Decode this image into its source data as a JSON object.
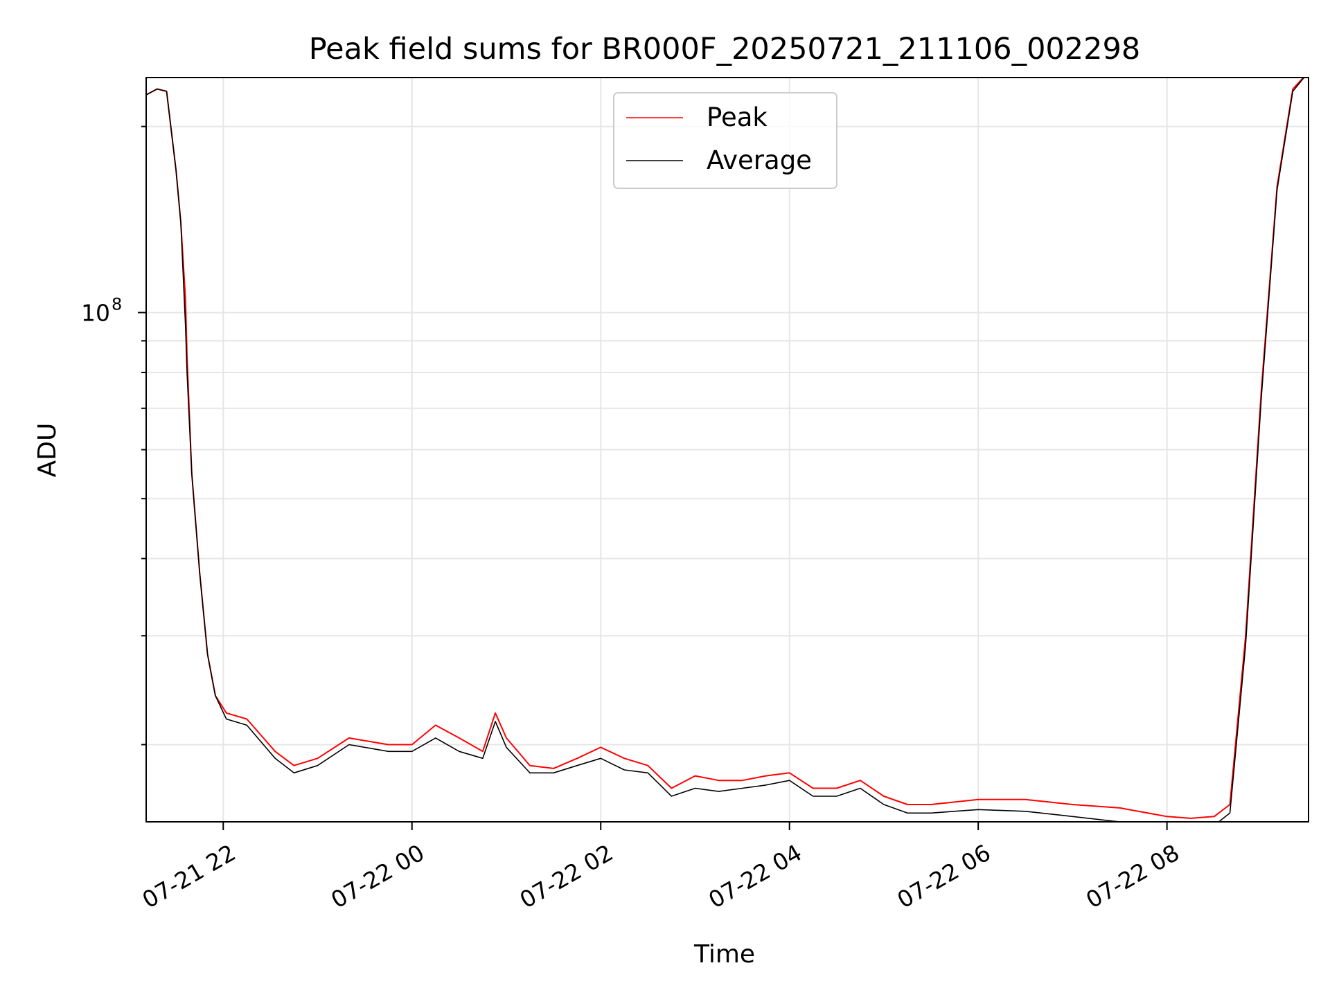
{
  "chart_data": {
    "type": "line",
    "title": "Peak field sums for BR000F_20250721_211106_002298",
    "xlabel": "Time",
    "ylabel": "ADU",
    "yscale": "log",
    "xlim": [
      "2025-07-21 21:11",
      "2025-07-22 09:30"
    ],
    "ylim": [
      15000000,
      240000000
    ],
    "grid": true,
    "legend_position": "top-center",
    "x_ticks": [
      {
        "time": "2025-07-21 22:00",
        "label": "07-21 22"
      },
      {
        "time": "2025-07-22 00:00",
        "label": "07-22 00"
      },
      {
        "time": "2025-07-22 02:00",
        "label": "07-22 02"
      },
      {
        "time": "2025-07-22 04:00",
        "label": "07-22 04"
      },
      {
        "time": "2025-07-22 06:00",
        "label": "07-22 06"
      },
      {
        "time": "2025-07-22 08:00",
        "label": "07-22 08"
      }
    ],
    "y_major_ticks": [
      {
        "value": 100000000,
        "base": "10",
        "exponent": "8"
      }
    ],
    "y_minor_ticks": [
      20000000,
      30000000,
      40000000,
      50000000,
      60000000,
      70000000,
      80000000,
      90000000,
      200000000
    ],
    "series": [
      {
        "name": "Peak",
        "color": "#ff0000",
        "x": [
          "2025-07-21 21:11",
          "2025-07-21 21:18",
          "2025-07-21 21:24",
          "2025-07-21 21:30",
          "2025-07-21 21:33",
          "2025-07-21 21:36",
          "2025-07-21 21:37",
          "2025-07-21 21:40",
          "2025-07-21 21:45",
          "2025-07-21 21:50",
          "2025-07-21 21:55",
          "2025-07-21 22:02",
          "2025-07-21 22:15",
          "2025-07-21 22:33",
          "2025-07-21 22:45",
          "2025-07-21 23:00",
          "2025-07-21 23:20",
          "2025-07-21 23:45",
          "2025-07-22 00:00",
          "2025-07-22 00:15",
          "2025-07-22 00:30",
          "2025-07-22 00:45",
          "2025-07-22 00:53",
          "2025-07-22 01:00",
          "2025-07-22 01:15",
          "2025-07-22 01:30",
          "2025-07-22 01:45",
          "2025-07-22 02:00",
          "2025-07-22 02:15",
          "2025-07-22 02:30",
          "2025-07-22 02:45",
          "2025-07-22 03:00",
          "2025-07-22 03:15",
          "2025-07-22 03:30",
          "2025-07-22 03:45",
          "2025-07-22 04:00",
          "2025-07-22 04:15",
          "2025-07-22 04:30",
          "2025-07-22 04:45",
          "2025-07-22 05:00",
          "2025-07-22 05:15",
          "2025-07-22 05:30",
          "2025-07-22 06:00",
          "2025-07-22 06:30",
          "2025-07-22 07:00",
          "2025-07-22 07:30",
          "2025-07-22 08:00",
          "2025-07-22 08:15",
          "2025-07-22 08:30",
          "2025-07-22 08:40",
          "2025-07-22 08:50",
          "2025-07-22 09:00",
          "2025-07-22 09:10",
          "2025-07-22 09:20",
          "2025-07-22 09:30"
        ],
        "y": [
          225000000,
          230000000,
          228000000,
          170000000,
          140000000,
          105000000,
          85000000,
          55000000,
          38000000,
          28000000,
          24000000,
          22500000,
          22000000,
          19500000,
          18500000,
          19000000,
          20500000,
          20000000,
          20000000,
          21500000,
          20500000,
          19500000,
          22500000,
          20500000,
          18500000,
          18300000,
          19000000,
          19800000,
          19000000,
          18500000,
          17000000,
          17800000,
          17500000,
          17500000,
          17800000,
          18000000,
          17000000,
          17000000,
          17500000,
          16500000,
          16000000,
          16000000,
          16300000,
          16300000,
          16000000,
          15800000,
          15300000,
          15200000,
          15300000,
          16000000,
          30000000,
          75000000,
          160000000,
          230000000,
          245000000
        ]
      },
      {
        "name": "Average",
        "color": "#000000",
        "x": [
          "2025-07-21 21:11",
          "2025-07-21 21:18",
          "2025-07-21 21:24",
          "2025-07-21 21:30",
          "2025-07-21 21:33",
          "2025-07-21 21:36",
          "2025-07-21 21:37",
          "2025-07-21 21:40",
          "2025-07-21 21:45",
          "2025-07-21 21:50",
          "2025-07-21 21:55",
          "2025-07-21 22:02",
          "2025-07-21 22:15",
          "2025-07-21 22:33",
          "2025-07-21 22:45",
          "2025-07-21 23:00",
          "2025-07-21 23:20",
          "2025-07-21 23:45",
          "2025-07-22 00:00",
          "2025-07-22 00:15",
          "2025-07-22 00:30",
          "2025-07-22 00:45",
          "2025-07-22 00:53",
          "2025-07-22 01:00",
          "2025-07-22 01:15",
          "2025-07-22 01:30",
          "2025-07-22 01:45",
          "2025-07-22 02:00",
          "2025-07-22 02:15",
          "2025-07-22 02:30",
          "2025-07-22 02:45",
          "2025-07-22 03:00",
          "2025-07-22 03:15",
          "2025-07-22 03:30",
          "2025-07-22 03:45",
          "2025-07-22 04:00",
          "2025-07-22 04:15",
          "2025-07-22 04:30",
          "2025-07-22 04:45",
          "2025-07-22 05:00",
          "2025-07-22 05:15",
          "2025-07-22 05:30",
          "2025-07-22 06:00",
          "2025-07-22 06:30",
          "2025-07-22 07:00",
          "2025-07-22 07:30",
          "2025-07-22 08:00",
          "2025-07-22 08:15",
          "2025-07-22 08:30",
          "2025-07-22 08:40",
          "2025-07-22 08:50",
          "2025-07-22 09:00",
          "2025-07-22 09:10",
          "2025-07-22 09:20",
          "2025-07-22 09:30"
        ],
        "y": [
          225000000,
          230000000,
          228000000,
          170000000,
          140000000,
          95000000,
          80000000,
          55000000,
          38000000,
          28000000,
          24000000,
          22000000,
          21500000,
          19000000,
          18000000,
          18500000,
          20000000,
          19500000,
          19500000,
          20500000,
          19500000,
          19000000,
          21800000,
          19800000,
          18000000,
          18000000,
          18500000,
          19000000,
          18200000,
          18000000,
          16500000,
          17000000,
          16800000,
          17000000,
          17200000,
          17500000,
          16500000,
          16500000,
          17000000,
          16000000,
          15500000,
          15500000,
          15700000,
          15600000,
          15300000,
          15000000,
          14800000,
          14700000,
          14800000,
          15500000,
          29000000,
          73000000,
          158000000,
          228000000,
          245000000
        ]
      }
    ]
  }
}
